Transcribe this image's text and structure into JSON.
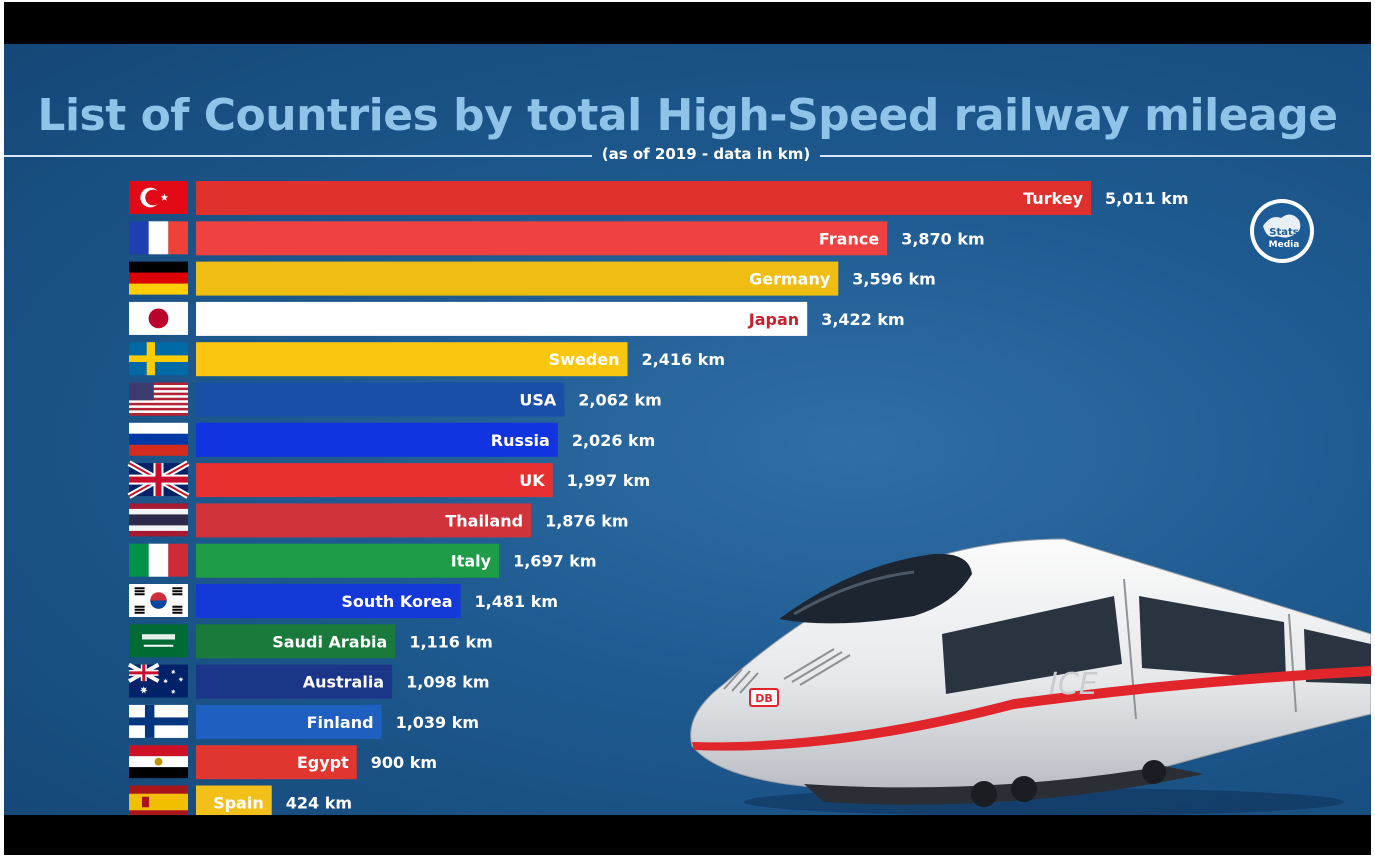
{
  "header": {
    "title": "List of Countries by total High-Speed railway mileage",
    "subtitle": "(as of 2019  -  data in km)"
  },
  "logo": {
    "line1": "Stats",
    "line2": "Media"
  },
  "train": {
    "badge": "DB",
    "marking": "ICE"
  },
  "chart_data": {
    "type": "bar",
    "orientation": "horizontal",
    "title": "List of Countries by total High-Speed railway mileage",
    "subtitle": "(as of 2019  -  data in km)",
    "unit": "km",
    "categories": [
      "Turkey",
      "France",
      "Germany",
      "Japan",
      "Sweden",
      "USA",
      "Russia",
      "UK",
      "Thailand",
      "Italy",
      "South Korea",
      "Saudi Arabia",
      "Australia",
      "Finland",
      "Egypt",
      "Spain"
    ],
    "values": [
      5011,
      3870,
      3596,
      3422,
      2416,
      2062,
      2026,
      1997,
      1876,
      1697,
      1481,
      1116,
      1098,
      1039,
      900,
      424
    ],
    "value_labels": [
      "5,011 km",
      "3,870 km",
      "3,596 km",
      "3,422 km",
      "2,416 km",
      "2,062 km",
      "2,026 km",
      "1,997 km",
      "1,876 km",
      "1,697 km",
      "1,481 km",
      "1,116 km",
      "1,098 km",
      "1,039 km",
      "900 km",
      "424 km"
    ],
    "colors": [
      "#e0302d",
      "#ef4141",
      "#f0bd12",
      "#ffffff",
      "#fbc70e",
      "#1a4fa8",
      "#1233e0",
      "#e93030",
      "#d0343a",
      "#1f9c48",
      "#1538d8",
      "#1a7a3c",
      "#1b3688",
      "#1f5fc0",
      "#e13530",
      "#f3c01a"
    ],
    "label_colors": [
      "#ffffff",
      "#ffffff",
      "#ffffff",
      "#c8202c",
      "#ffffff",
      "#ffffff",
      "#ffffff",
      "#ffffff",
      "#ffffff",
      "#ffffff",
      "#ffffff",
      "#ffffff",
      "#ffffff",
      "#ffffff",
      "#ffffff",
      "#ffffff"
    ],
    "flags": [
      "turkey",
      "france",
      "germany",
      "japan",
      "sweden",
      "usa",
      "russia",
      "uk",
      "thailand",
      "italy",
      "south-korea",
      "saudi-arabia",
      "australia",
      "finland",
      "egypt",
      "spain"
    ],
    "xlim": [
      0,
      5011
    ],
    "grid": false,
    "legend": "none"
  }
}
